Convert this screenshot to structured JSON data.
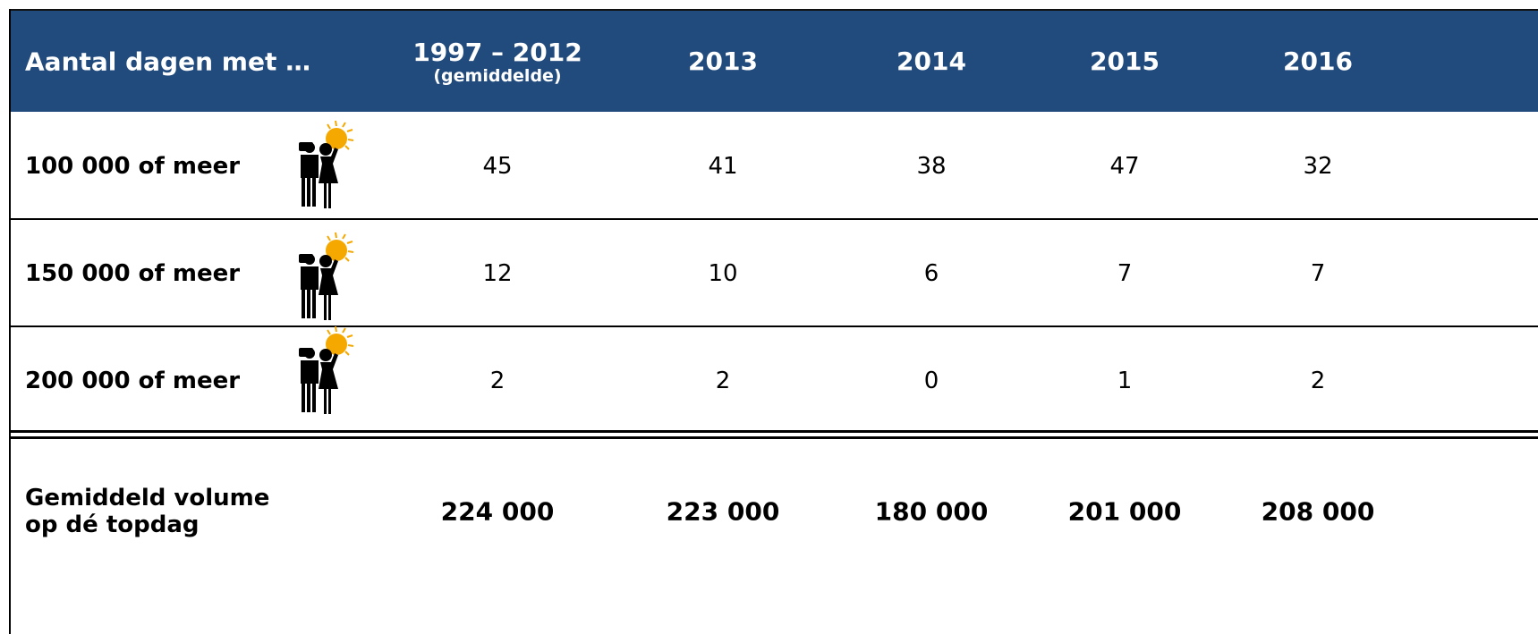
{
  "header": {
    "title": "Aantal dagen met …",
    "columns": [
      {
        "label": "1997 – 2012",
        "sublabel": "(gemiddelde)"
      },
      {
        "label": "2013"
      },
      {
        "label": "2014"
      },
      {
        "label": "2015"
      },
      {
        "label": "2016"
      }
    ]
  },
  "table": {
    "rows": [
      {
        "label": "100 000 of meer",
        "values": [
          45,
          41,
          38,
          47,
          32
        ]
      },
      {
        "label": "150 000 of meer",
        "values": [
          12,
          10,
          6,
          7,
          7
        ]
      },
      {
        "label": "200 000 of meer",
        "values": [
          2,
          2,
          0,
          1,
          2
        ]
      }
    ]
  },
  "footer": {
    "label": "Gemiddeld volume op dé topdag",
    "values": [
      "224 000",
      "223 000",
      "180 000",
      "201 000",
      "208 000"
    ]
  }
}
